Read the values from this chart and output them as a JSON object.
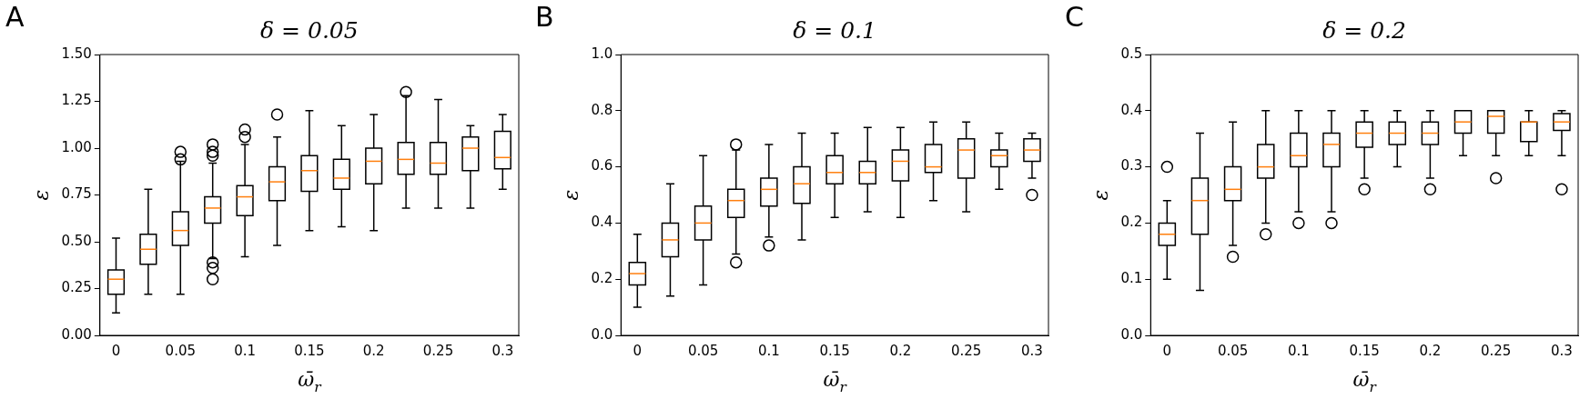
{
  "chart_data": [
    {
      "type": "box",
      "title": "δ = 0.05",
      "xlabel": "ω̄$_{r}$",
      "ylabel": "ε",
      "annotations": [
        "A"
      ],
      "grid": false,
      "legend": false,
      "categories": [
        "0",
        null,
        "0.05",
        null,
        "0.1",
        null,
        "0.15",
        null,
        "0.2",
        null,
        "0.25",
        null,
        "0.3"
      ],
      "ylim": [
        0,
        1.5
      ],
      "yticks": [
        {
          "value": 0,
          "label": "0.00"
        },
        {
          "value": 0.25,
          "label": "0.25"
        },
        {
          "value": 0.5,
          "label": "0.50"
        },
        {
          "value": 0.75,
          "label": "0.75"
        },
        {
          "value": 1,
          "label": "1.00"
        },
        {
          "value": 1.25,
          "label": "1.25"
        },
        {
          "value": 1.5,
          "label": "1.50"
        }
      ],
      "series": [
        {
          "color": "#000000",
          "boxes": [
            {
              "low": 0.12,
              "q1": 0.22,
              "median": 0.3,
              "q3": 0.35,
              "high": 0.52
            },
            {
              "low": 0.22,
              "q1": 0.38,
              "median": 0.46,
              "q3": 0.54,
              "high": 0.78
            },
            {
              "low": 0.22,
              "q1": 0.48,
              "median": 0.56,
              "q3": 0.66,
              "high": 0.93,
              "outliers": [
                0.94,
                0.98
              ]
            },
            {
              "low": 0.41,
              "q1": 0.6,
              "median": 0.68,
              "q3": 0.74,
              "high": 0.92,
              "outliers": [
                0.3,
                0.36,
                0.39,
                0.96,
                0.98,
                1.02
              ]
            },
            {
              "low": 0.42,
              "q1": 0.64,
              "median": 0.74,
              "q3": 0.8,
              "high": 1.02,
              "outliers": [
                1.06,
                1.1
              ]
            },
            {
              "low": 0.48,
              "q1": 0.72,
              "median": 0.82,
              "q3": 0.9,
              "high": 1.06,
              "outliers": [
                1.18
              ]
            },
            {
              "low": 0.56,
              "q1": 0.77,
              "median": 0.88,
              "q3": 0.96,
              "high": 1.2
            },
            {
              "low": 0.58,
              "q1": 0.78,
              "median": 0.84,
              "q3": 0.94,
              "high": 1.12
            },
            {
              "low": 0.56,
              "q1": 0.81,
              "median": 0.93,
              "q3": 1.0,
              "high": 1.18
            },
            {
              "low": 0.68,
              "q1": 0.86,
              "median": 0.94,
              "q3": 1.03,
              "high": 1.28,
              "outliers": [
                1.3
              ]
            },
            {
              "low": 0.68,
              "q1": 0.86,
              "median": 0.92,
              "q3": 1.03,
              "high": 1.26
            },
            {
              "low": 0.68,
              "q1": 0.88,
              "median": 1.0,
              "q3": 1.06,
              "high": 1.12
            },
            {
              "low": 0.78,
              "q1": 0.89,
              "median": 0.95,
              "q3": 1.09,
              "high": 1.18
            }
          ]
        }
      ]
    },
    {
      "type": "box",
      "title": "δ = 0.1",
      "xlabel": "ω̄$_{r}$",
      "ylabel": "ε",
      "annotations": [
        "B"
      ],
      "grid": false,
      "legend": false,
      "categories": [
        "0",
        null,
        "0.05",
        null,
        "0.1",
        null,
        "0.15",
        null,
        "0.2",
        null,
        "0.25",
        null,
        "0.3"
      ],
      "ylim": [
        0,
        1
      ],
      "yticks": [
        {
          "value": 0,
          "label": "0.0"
        },
        {
          "value": 0.2,
          "label": "0.2"
        },
        {
          "value": 0.4,
          "label": "0.4"
        },
        {
          "value": 0.6,
          "label": "0.6"
        },
        {
          "value": 0.8,
          "label": "0.8"
        },
        {
          "value": 1,
          "label": "1.0"
        }
      ],
      "series": [
        {
          "color": "#000000",
          "boxes": [
            {
              "low": 0.1,
              "q1": 0.18,
              "median": 0.22,
              "q3": 0.26,
              "high": 0.36
            },
            {
              "low": 0.14,
              "q1": 0.28,
              "median": 0.34,
              "q3": 0.4,
              "high": 0.54
            },
            {
              "low": 0.18,
              "q1": 0.34,
              "median": 0.4,
              "q3": 0.46,
              "high": 0.64
            },
            {
              "low": 0.29,
              "q1": 0.42,
              "median": 0.48,
              "q3": 0.52,
              "high": 0.66,
              "outliers": [
                0.26,
                0.68
              ]
            },
            {
              "low": 0.35,
              "q1": 0.46,
              "median": 0.52,
              "q3": 0.56,
              "high": 0.68,
              "outliers": [
                0.32
              ]
            },
            {
              "low": 0.34,
              "q1": 0.47,
              "median": 0.54,
              "q3": 0.6,
              "high": 0.72
            },
            {
              "low": 0.42,
              "q1": 0.54,
              "median": 0.58,
              "q3": 0.64,
              "high": 0.72
            },
            {
              "low": 0.44,
              "q1": 0.54,
              "median": 0.58,
              "q3": 0.62,
              "high": 0.74
            },
            {
              "low": 0.42,
              "q1": 0.55,
              "median": 0.62,
              "q3": 0.66,
              "high": 0.74
            },
            {
              "low": 0.48,
              "q1": 0.58,
              "median": 0.6,
              "q3": 0.68,
              "high": 0.76
            },
            {
              "low": 0.44,
              "q1": 0.56,
              "median": 0.66,
              "q3": 0.7,
              "high": 0.76
            },
            {
              "low": 0.52,
              "q1": 0.6,
              "median": 0.64,
              "q3": 0.66,
              "high": 0.72
            },
            {
              "low": 0.56,
              "q1": 0.62,
              "median": 0.66,
              "q3": 0.7,
              "high": 0.72,
              "outliers": [
                0.5
              ]
            }
          ]
        }
      ]
    },
    {
      "type": "box",
      "title": "δ = 0.2",
      "xlabel": "ω̄$_{r}$",
      "ylabel": "ε",
      "annotations": [
        "C"
      ],
      "grid": false,
      "legend": false,
      "categories": [
        "0",
        null,
        "0.05",
        null,
        "0.1",
        null,
        "0.15",
        null,
        "0.2",
        null,
        "0.25",
        null,
        "0.3"
      ],
      "ylim": [
        0,
        0.5
      ],
      "yticks": [
        {
          "value": 0,
          "label": "0.0"
        },
        0.1,
        0.2,
        0.3,
        0.4,
        0.5
      ],
      "series": [
        {
          "color": "#000000",
          "boxes": [
            {
              "low": 0.1,
              "q1": 0.16,
              "median": 0.18,
              "q3": 0.2,
              "high": 0.24,
              "outliers": [
                0.3
              ]
            },
            {
              "low": 0.08,
              "q1": 0.18,
              "median": 0.24,
              "q3": 0.28,
              "high": 0.36
            },
            {
              "low": 0.16,
              "q1": 0.24,
              "median": 0.26,
              "q3": 0.3,
              "high": 0.38,
              "outliers": [
                0.14
              ]
            },
            {
              "low": 0.2,
              "q1": 0.28,
              "median": 0.3,
              "q3": 0.34,
              "high": 0.4,
              "outliers": [
                0.18
              ]
            },
            {
              "low": 0.22,
              "q1": 0.3,
              "median": 0.32,
              "q3": 0.36,
              "high": 0.4,
              "outliers": [
                0.2
              ]
            },
            {
              "low": 0.22,
              "q1": 0.3,
              "median": 0.34,
              "q3": 0.36,
              "high": 0.4,
              "outliers": [
                0.2
              ]
            },
            {
              "low": 0.28,
              "q1": 0.335,
              "median": 0.36,
              "q3": 0.38,
              "high": 0.4,
              "outliers": [
                0.26
              ]
            },
            {
              "low": 0.3,
              "q1": 0.34,
              "median": 0.36,
              "q3": 0.38,
              "high": 0.4
            },
            {
              "low": 0.28,
              "q1": 0.34,
              "median": 0.36,
              "q3": 0.38,
              "high": 0.4,
              "outliers": [
                0.26
              ]
            },
            {
              "low": 0.32,
              "q1": 0.36,
              "median": 0.38,
              "q3": 0.4,
              "high": 0.4
            },
            {
              "low": 0.32,
              "q1": 0.36,
              "median": 0.39,
              "q3": 0.4,
              "high": 0.4,
              "outliers": [
                0.28
              ]
            },
            {
              "low": 0.32,
              "q1": 0.345,
              "median": 0.38,
              "q3": 0.38,
              "high": 0.4
            },
            {
              "low": 0.32,
              "q1": 0.365,
              "median": 0.38,
              "q3": 0.395,
              "high": 0.4,
              "outliers": [
                0.26
              ]
            }
          ]
        }
      ]
    }
  ]
}
